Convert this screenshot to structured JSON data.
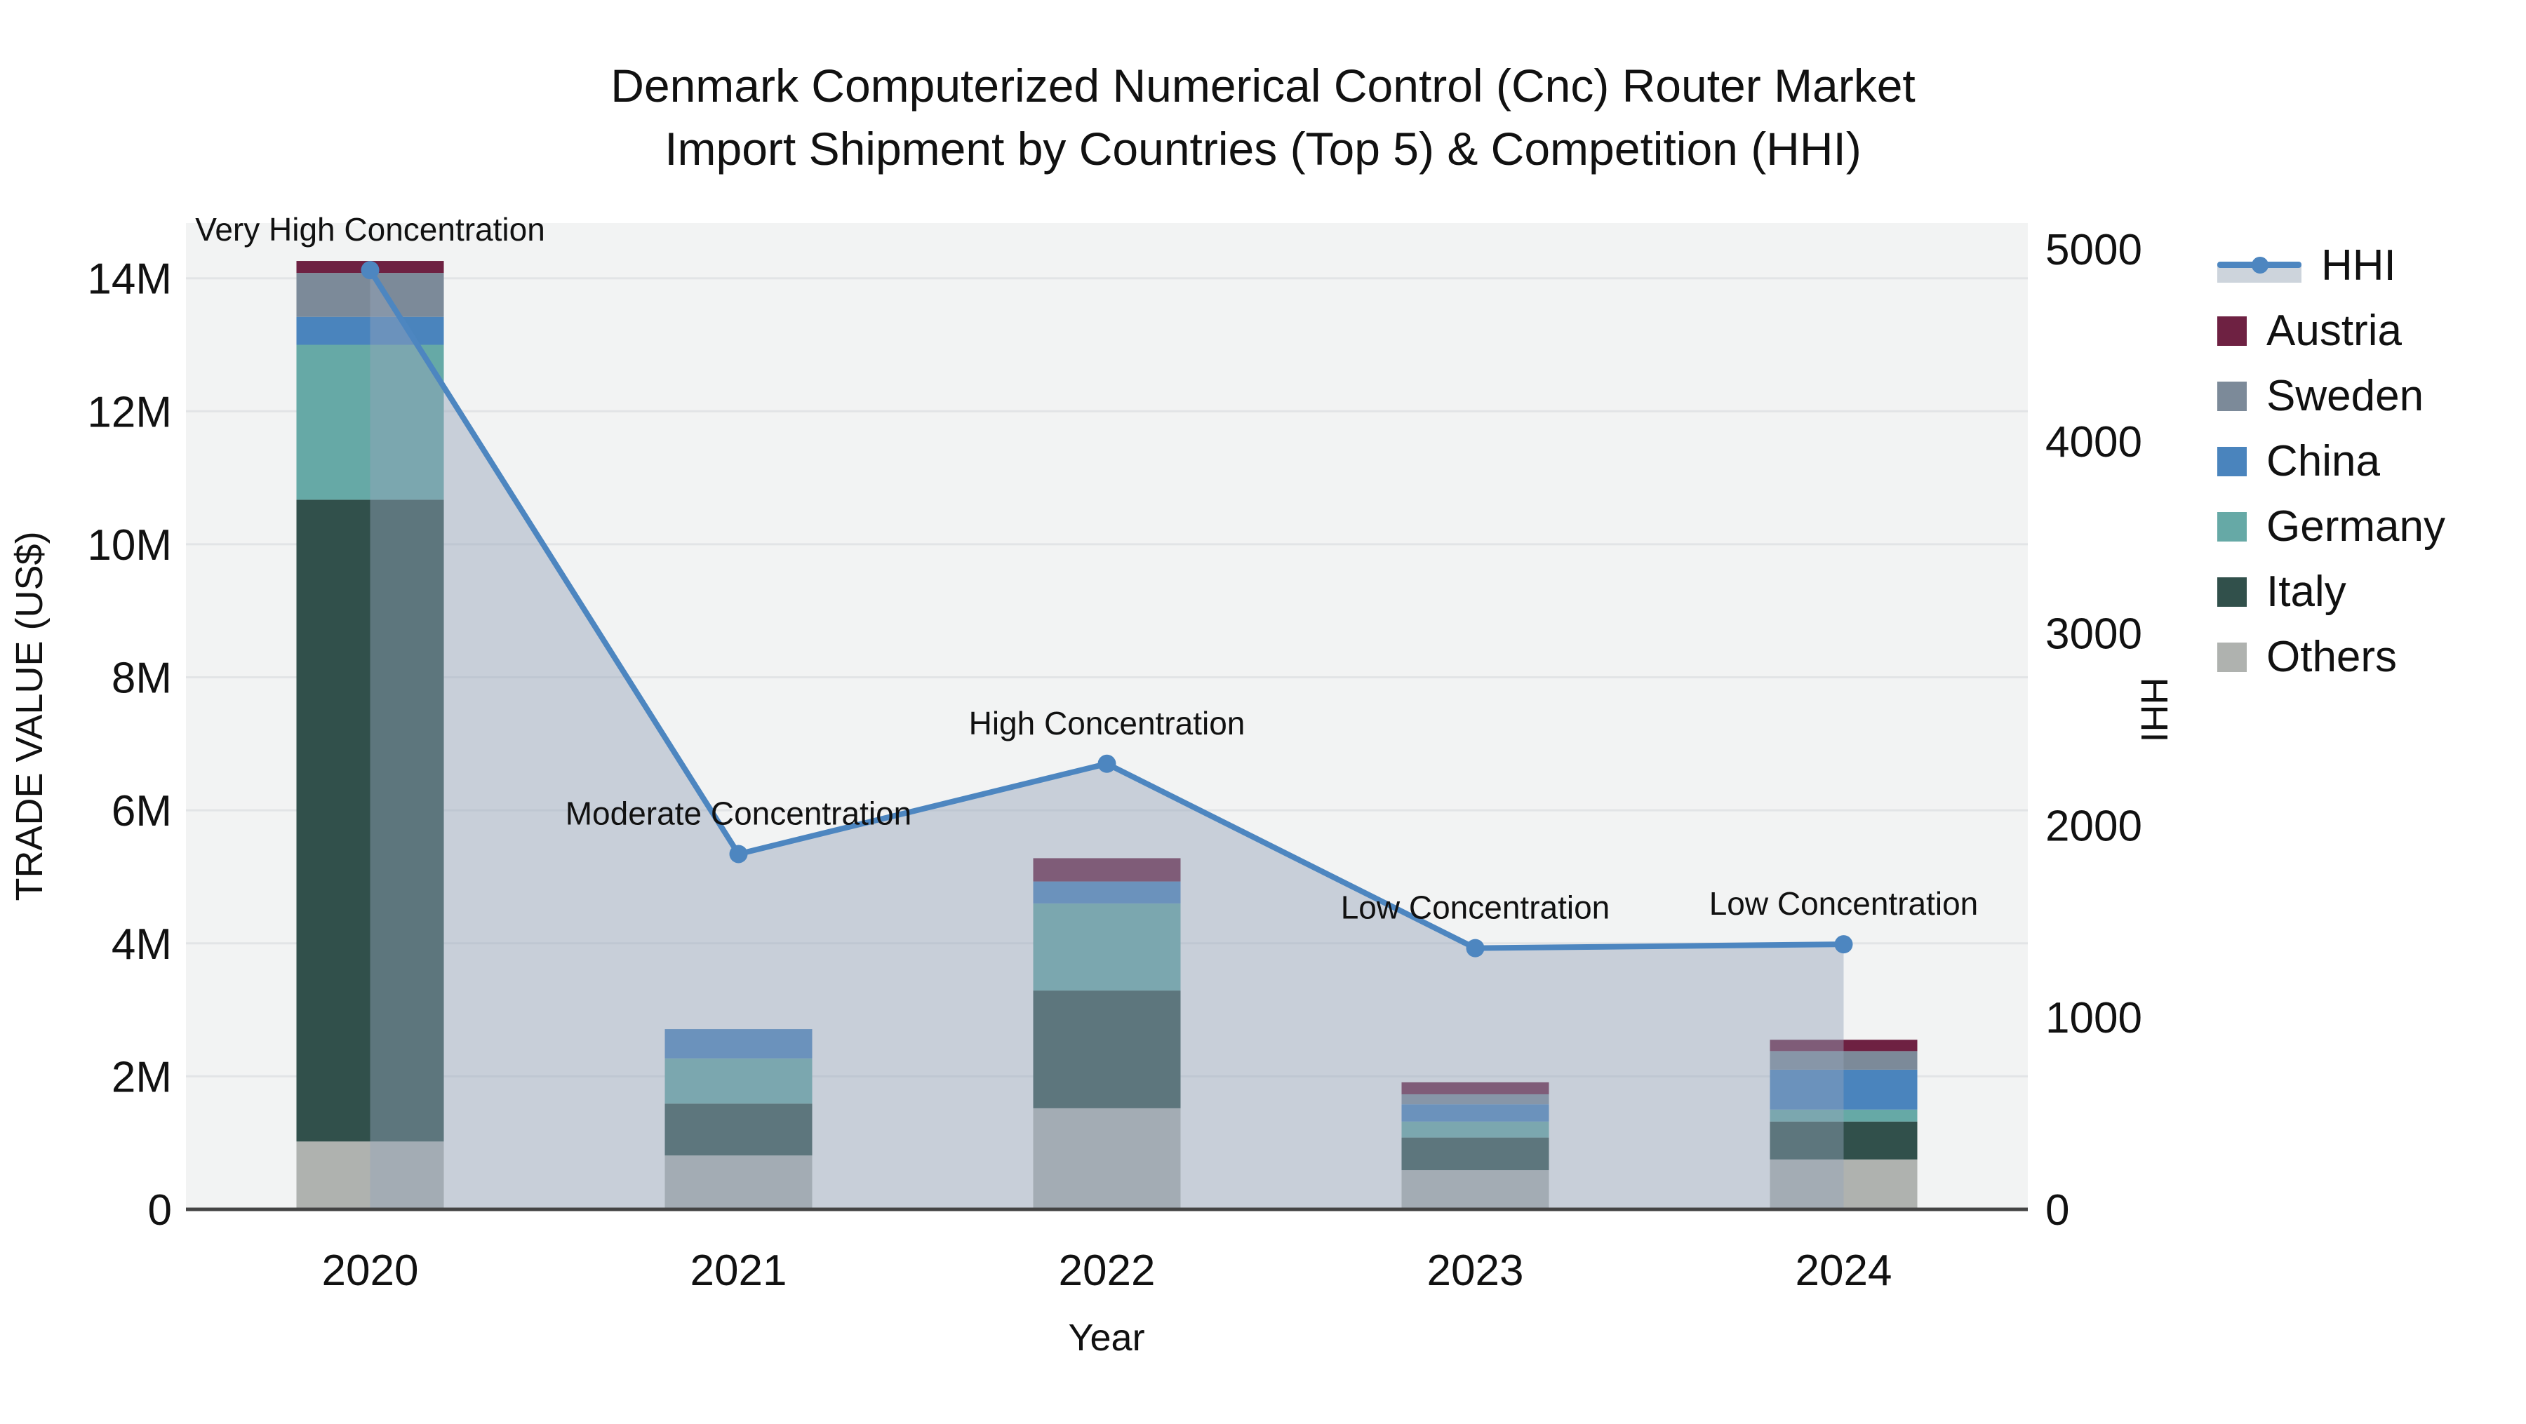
{
  "title": {
    "line1": "Denmark Computerized Numerical Control (Cnc) Router Market",
    "line2": "Import Shipment by Countries (Top 5) & Competition (HHI)"
  },
  "chart_data": {
    "type": "bar+line",
    "unit": "millions US$",
    "categories": [
      "2020",
      "2021",
      "2022",
      "2023",
      "2024"
    ],
    "stack_order_bottom_to_top": [
      "Others",
      "Italy",
      "Germany",
      "China",
      "Sweden",
      "Austria"
    ],
    "series": [
      {
        "name": "Others",
        "color": "#afb2af",
        "values": [
          1.02,
          0.81,
          1.52,
          0.59,
          0.75
        ]
      },
      {
        "name": "Italy",
        "color": "#31504b",
        "values": [
          9.65,
          0.78,
          1.77,
          0.49,
          0.57
        ]
      },
      {
        "name": "Germany",
        "color": "#66a9a6",
        "values": [
          2.33,
          0.68,
          1.31,
          0.24,
          0.18
        ]
      },
      {
        "name": "China",
        "color": "#4a84bd",
        "values": [
          0.42,
          0.44,
          0.33,
          0.26,
          0.6
        ]
      },
      {
        "name": "Sweden",
        "color": "#7c8a99",
        "values": [
          0.66,
          0.0,
          0.0,
          0.15,
          0.28
        ]
      },
      {
        "name": "Austria",
        "color": "#6e2142",
        "values": [
          0.18,
          0.0,
          0.35,
          0.18,
          0.17
        ]
      }
    ],
    "hhi": {
      "name": "HHI",
      "values": [
        4890,
        1850,
        2320,
        1360,
        1380
      ],
      "line_color": "#4d86c0",
      "area_color": "rgba(148,164,186,0.45)"
    },
    "annotations": [
      "Very High Concentration",
      "Moderate Concentration",
      "High Concentration",
      "Low Concentration",
      "Low Concentration"
    ],
    "legend_order": [
      "HHI",
      "Austria",
      "Sweden",
      "China",
      "Germany",
      "Italy",
      "Others"
    ],
    "xlabel": "Year",
    "ylabel_left": "TRADE VALUE (US$)",
    "ylabel_right": "HHI",
    "y_left": {
      "tick_labels": [
        "0",
        "2M",
        "4M",
        "6M",
        "8M",
        "10M",
        "12M",
        "14M"
      ],
      "tick_values": [
        0,
        2,
        4,
        6,
        8,
        10,
        12,
        14
      ],
      "max": 14.83
    },
    "y_right": {
      "tick_labels": [
        "0",
        "1000",
        "2000",
        "3000",
        "4000",
        "5000"
      ],
      "tick_values": [
        0,
        1000,
        2000,
        3000,
        4000,
        5000
      ],
      "max": 5135
    },
    "grid": true,
    "legend_position": "right"
  }
}
